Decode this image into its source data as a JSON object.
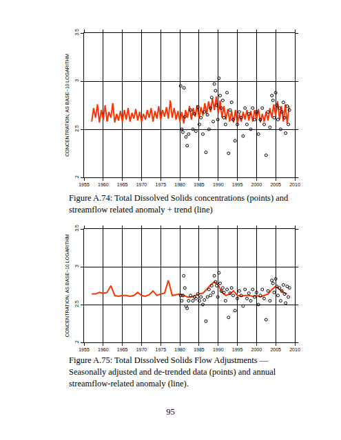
{
  "chart_data": [
    {
      "type": "scatter",
      "y_label": "CONCENTRATION, AS BASE−10 LOGARITHM",
      "caption": "Figure A.74: Total Dissolved Solids concentrations (points) and streamflow related anomaly + trend (line)",
      "xlim": [
        1955,
        2010
      ],
      "xticks": [
        1955,
        1960,
        1965,
        1970,
        1975,
        1980,
        1985,
        1990,
        1995,
        2000,
        2005,
        2010
      ],
      "ylim": [
        2,
        3.5
      ],
      "yticks": [
        2,
        2.5,
        3,
        3.5
      ],
      "grid": true,
      "series": [
        {
          "type": "line",
          "color": "#ff3300",
          "line_style": "solid",
          "x": [
            1957,
            1957.5,
            1958,
            1958.5,
            1959,
            1959.5,
            1960,
            1960.5,
            1961,
            1961.5,
            1962,
            1962.5,
            1963,
            1963.5,
            1964,
            1964.5,
            1965,
            1965.5,
            1966,
            1966.5,
            1967,
            1967.5,
            1968,
            1968.5,
            1969,
            1969.5,
            1970,
            1970.5,
            1971,
            1971.5,
            1972,
            1972.5,
            1973,
            1973.5,
            1974,
            1974.5,
            1975,
            1975.5,
            1976,
            1976.5,
            1977,
            1977.5,
            1978,
            1978.5,
            1979,
            1979.5,
            1980,
            1980.5,
            1981,
            1981.5,
            1982,
            1982.5,
            1983,
            1983.5,
            1984,
            1984.5,
            1985,
            1985.5,
            1986,
            1986.5,
            1987,
            1987.5,
            1988,
            1988.5,
            1989,
            1989.5,
            1990,
            1990.5,
            1991,
            1991.5,
            1992,
            1992.5,
            1993,
            1993.5,
            1994,
            1994.5,
            1995,
            1995.5,
            1996,
            1996.5,
            1997,
            1997.5,
            1998,
            1998.5,
            1999,
            1999.5,
            2000,
            2000.5,
            2001,
            2001.5,
            2002,
            2002.5,
            2003,
            2003.5,
            2004,
            2004.5,
            2005,
            2005.5,
            2006,
            2006.5,
            2007,
            2007.5,
            2008,
            2008.5
          ],
          "values": [
            2.58,
            2.72,
            2.62,
            2.76,
            2.57,
            2.7,
            2.6,
            2.75,
            2.58,
            2.68,
            2.62,
            2.77,
            2.57,
            2.66,
            2.59,
            2.69,
            2.58,
            2.7,
            2.6,
            2.72,
            2.58,
            2.67,
            2.61,
            2.71,
            2.59,
            2.68,
            2.58,
            2.66,
            2.6,
            2.7,
            2.62,
            2.72,
            2.58,
            2.69,
            2.61,
            2.74,
            2.6,
            2.7,
            2.63,
            2.73,
            2.61,
            2.8,
            2.62,
            2.72,
            2.6,
            2.69,
            2.58,
            2.68,
            2.56,
            2.7,
            2.62,
            2.74,
            2.6,
            2.72,
            2.63,
            2.75,
            2.61,
            2.73,
            2.64,
            2.77,
            2.66,
            2.79,
            2.68,
            2.82,
            2.7,
            2.84,
            2.66,
            2.8,
            2.62,
            2.74,
            2.6,
            2.71,
            2.58,
            2.69,
            2.57,
            2.7,
            2.56,
            2.66,
            2.58,
            2.68,
            2.6,
            2.7,
            2.59,
            2.69,
            2.58,
            2.7,
            2.6,
            2.71,
            2.57,
            2.66,
            2.58,
            2.68,
            2.59,
            2.72,
            2.62,
            2.76,
            2.64,
            2.79,
            2.6,
            2.74,
            2.58,
            2.76,
            2.56,
            2.74
          ]
        },
        {
          "type": "scatter",
          "color": "#000000",
          "marker": "circle-open",
          "x": [
            1980.2,
            1980.5,
            1980.8,
            1981.1,
            1981.3,
            1981.6,
            1981.9,
            1982.3,
            1982.8,
            1983.4,
            1983.8,
            1984.2,
            1984.7,
            1985.1,
            1985.5,
            1986,
            1986.4,
            1986.8,
            1987.2,
            1987.6,
            1988,
            1988.3,
            1988.7,
            1989,
            1989.3,
            1989.6,
            1989.9,
            1990.2,
            1990.5,
            1990.8,
            1991.2,
            1991.5,
            1991.9,
            1992.3,
            1992.7,
            1993.1,
            1993.5,
            1993.9,
            1994.4,
            1995,
            1995.5,
            1996,
            1996.5,
            1997,
            1997.5,
            1998,
            1998.5,
            1999,
            1999.5,
            2000,
            2000.5,
            2001,
            2001.5,
            2002,
            2002.5,
            2003,
            2003.5,
            2004,
            2004.3,
            2004.6,
            2005,
            2005.3,
            2005.6,
            2006,
            2006.3,
            2006.6,
            2007,
            2007.3,
            2007.6,
            2008,
            2008.3,
            2008.6
          ],
          "values": [
            2.95,
            2.5,
            2.47,
            2.93,
            2.63,
            2.42,
            2.33,
            2.45,
            2.7,
            2.5,
            2.66,
            2.48,
            2.73,
            2.55,
            2.62,
            2.45,
            2.68,
            2.26,
            2.65,
            2.5,
            2.72,
            2.83,
            2.58,
            2.97,
            2.9,
            2.75,
            2.6,
            3.03,
            2.85,
            2.72,
            2.8,
            2.62,
            2.55,
            2.88,
            2.25,
            2.7,
            2.78,
            2.6,
            2.38,
            2.55,
            2.68,
            2.62,
            2.43,
            2.72,
            2.55,
            2.66,
            2.5,
            2.72,
            2.6,
            2.68,
            2.45,
            2.6,
            2.72,
            2.55,
            2.23,
            2.68,
            2.52,
            2.85,
            2.8,
            2.62,
            2.88,
            2.75,
            2.6,
            2.72,
            2.5,
            2.68,
            2.78,
            2.62,
            2.46,
            2.74,
            2.55,
            2.7
          ]
        }
      ]
    },
    {
      "type": "scatter",
      "y_label": "CONCENTRATION, AS BASE−10 LOGARITHM",
      "caption": "Figure A.75: Total Dissolved Solids Flow Adjustments — Seasonally adjusted and de-trended data (points) and annual streamflow-related anomaly (line).",
      "xlim": [
        1955,
        2010
      ],
      "xticks": [
        1955,
        1960,
        1965,
        1970,
        1975,
        1980,
        1985,
        1990,
        1995,
        2000,
        2005,
        2010
      ],
      "ylim": [
        2,
        3.5
      ],
      "yticks": [
        2,
        2.5,
        3,
        3.5
      ],
      "grid": true,
      "series": [
        {
          "type": "line",
          "color": "#ff3300",
          "line_style": "solid",
          "x": [
            1957,
            1958,
            1959,
            1960,
            1961,
            1962,
            1963,
            1964,
            1965,
            1966,
            1967,
            1968,
            1969,
            1970,
            1971,
            1972,
            1973,
            1974,
            1975,
            1976,
            1977,
            1978,
            1979,
            1980,
            1981,
            1982,
            1983,
            1984,
            1985,
            1986,
            1987,
            1988,
            1989,
            1990,
            1991,
            1992,
            1993,
            1994,
            1995,
            1996,
            1997,
            1998,
            1999,
            2000,
            2001,
            2002,
            2003,
            2004,
            2005,
            2006,
            2007,
            2008
          ],
          "values": [
            2.64,
            2.64,
            2.66,
            2.65,
            2.66,
            2.75,
            2.62,
            2.61,
            2.62,
            2.62,
            2.61,
            2.62,
            2.66,
            2.62,
            2.61,
            2.63,
            2.68,
            2.62,
            2.64,
            2.65,
            2.82,
            2.62,
            2.63,
            2.64,
            2.62,
            2.6,
            2.6,
            2.62,
            2.64,
            2.65,
            2.7,
            2.76,
            2.8,
            2.76,
            2.66,
            2.62,
            2.64,
            2.68,
            2.62,
            2.61,
            2.62,
            2.62,
            2.61,
            2.62,
            2.6,
            2.62,
            2.64,
            2.7,
            2.74,
            2.7,
            2.66,
            2.64
          ]
        },
        {
          "type": "scatter",
          "color": "#000000",
          "marker": "circle-open",
          "x": [
            1980.2,
            1980.5,
            1980.8,
            1981,
            1981.3,
            1981.6,
            1981.9,
            1982.3,
            1982.8,
            1983.4,
            1983.8,
            1984.2,
            1984.7,
            1985.1,
            1985.5,
            1986,
            1986.4,
            1986.8,
            1987.2,
            1987.6,
            1988,
            1988.3,
            1988.7,
            1989,
            1989.3,
            1989.6,
            1989.9,
            1990.2,
            1990.5,
            1990.8,
            1991.2,
            1991.5,
            1991.9,
            1992.3,
            1992.7,
            1993.1,
            1993.5,
            1993.9,
            1994.4,
            1995,
            1995.5,
            1996,
            1996.5,
            1997,
            1997.5,
            1998,
            1998.5,
            1999,
            1999.5,
            2000,
            2000.5,
            2001,
            2001.5,
            2002,
            2002.5,
            2003,
            2003.5,
            2004,
            2004.3,
            2004.6,
            2005,
            2005.3,
            2005.6,
            2006,
            2006.3,
            2006.6,
            2007,
            2007.3,
            2007.6,
            2008,
            2008.3,
            2008.6
          ],
          "values": [
            2.62,
            2.55,
            2.62,
            2.88,
            2.72,
            2.48,
            2.45,
            2.55,
            2.62,
            2.55,
            2.6,
            2.58,
            2.64,
            2.55,
            2.6,
            2.5,
            2.56,
            2.28,
            2.6,
            2.7,
            2.62,
            2.75,
            2.66,
            2.88,
            2.8,
            2.75,
            2.6,
            2.92,
            2.78,
            2.68,
            2.72,
            2.66,
            2.55,
            2.7,
            2.33,
            2.65,
            2.72,
            2.62,
            2.42,
            2.58,
            2.68,
            2.62,
            2.48,
            2.7,
            2.58,
            2.65,
            2.55,
            2.7,
            2.6,
            2.66,
            2.5,
            2.62,
            2.7,
            2.58,
            2.3,
            2.68,
            2.55,
            2.82,
            2.78,
            2.66,
            2.84,
            2.74,
            2.62,
            2.72,
            2.55,
            2.68,
            2.76,
            2.64,
            2.52,
            2.74,
            2.6,
            2.72
          ]
        }
      ]
    }
  ],
  "page_number": "95"
}
